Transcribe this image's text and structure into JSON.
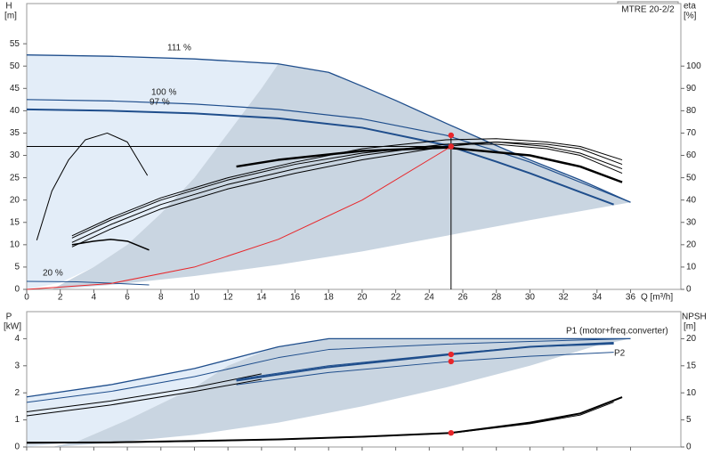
{
  "chart_data": [
    {
      "type": "line",
      "title": "MTRE 20-2/2",
      "y_label": "H",
      "y_unit": "[m]",
      "y2_label": "eta",
      "y2_unit": "[%]",
      "x_label": "Q [m³/h]",
      "xlim": [
        0,
        39
      ],
      "ylim": [
        0,
        64
      ],
      "y2lim": [
        0,
        128
      ],
      "xticks": [
        0,
        2,
        4,
        6,
        8,
        10,
        12,
        14,
        16,
        18,
        20,
        22,
        24,
        26,
        28,
        30,
        32,
        34,
        36
      ],
      "yticks": [
        0,
        5,
        10,
        15,
        20,
        25,
        30,
        35,
        40,
        45,
        50,
        55
      ],
      "y2ticks": [
        0,
        10,
        20,
        30,
        40,
        50,
        60,
        70,
        80,
        90,
        100
      ],
      "regions": [
        {
          "color": "#e3edf8",
          "x": [
            0,
            0,
            5,
            10,
            15,
            14,
            12,
            10,
            8,
            6,
            4,
            2
          ],
          "values": [
            0,
            52.5,
            52.2,
            51.6,
            50.5,
            45,
            35,
            25,
            17,
            10,
            5,
            1.5
          ]
        },
        {
          "color": "#c9d5e1",
          "x": [
            15,
            18,
            20,
            22,
            25,
            28,
            30,
            33,
            36,
            30,
            25,
            20,
            15,
            10,
            5,
            1.5,
            4,
            6,
            8,
            10,
            12,
            14
          ],
          "values": [
            50.5,
            48.6,
            45.5,
            42.3,
            37.2,
            32.2,
            29,
            24.5,
            19.5,
            15.5,
            12,
            8.5,
            5.5,
            3,
            1,
            0,
            5,
            10,
            17,
            25,
            35,
            45
          ]
        }
      ],
      "series": [
        {
          "name": "111 %",
          "color": "#1f4e8c",
          "width": 1.3,
          "mode": "lines",
          "x": [
            0,
            5,
            10,
            15,
            18,
            20,
            22,
            25,
            28,
            30,
            33,
            36
          ],
          "values": [
            52.5,
            52.2,
            51.6,
            50.5,
            48.6,
            45.5,
            42.3,
            37.2,
            32.2,
            29,
            24.5,
            19.5
          ]
        },
        {
          "name": "100 %",
          "color": "#1f4e8c",
          "width": 1.2,
          "mode": "lines",
          "x": [
            0,
            5,
            10,
            15,
            20,
            25,
            28,
            30,
            33,
            36
          ],
          "values": [
            42.5,
            42.2,
            41.5,
            40.3,
            38.2,
            34.5,
            31,
            28.5,
            24,
            19.5
          ]
        },
        {
          "name": "97 %",
          "color": "#1f4e8c",
          "width": 2,
          "mode": "lines",
          "x": [
            0,
            5,
            10,
            15,
            20,
            25,
            28,
            30,
            33,
            35
          ],
          "values": [
            40.3,
            40,
            39.4,
            38.3,
            36.2,
            32.3,
            28.6,
            26,
            21.8,
            19
          ]
        },
        {
          "name": "20 %",
          "color": "#1f4e8c",
          "width": 1,
          "mode": "lines",
          "x": [
            0,
            3,
            5,
            7.3
          ],
          "values": [
            1.8,
            1.7,
            1.4,
            1
          ]
        },
        {
          "color": "#000000",
          "width": 2.5,
          "mode": "lines",
          "axis": "y2",
          "x": [
            12.5,
            15,
            20,
            25,
            30,
            33,
            35.5
          ],
          "values": [
            55,
            58,
            62,
            63.5,
            60,
            55,
            48
          ]
        },
        {
          "color": "#000000",
          "width": 1,
          "mode": "lines",
          "axis": "y2",
          "x": [
            2.7,
            5,
            8,
            12,
            16,
            20,
            25,
            28,
            31,
            33,
            35.5
          ],
          "values": [
            23,
            31,
            40,
            49,
            56,
            61,
            65,
            65,
            63,
            60,
            52
          ]
        },
        {
          "color": "#000000",
          "width": 1,
          "mode": "lines",
          "axis": "y2",
          "x": [
            2.7,
            5,
            8,
            12,
            16,
            20,
            25,
            28,
            31,
            33,
            35.5
          ],
          "values": [
            21,
            29,
            38,
            47,
            54,
            60,
            65,
            66,
            64,
            61,
            54
          ]
        },
        {
          "color": "#000000",
          "width": 1,
          "mode": "lines",
          "axis": "y2",
          "x": [
            2.7,
            5,
            8,
            12,
            16,
            20,
            25,
            28,
            31,
            33,
            35.5
          ],
          "values": [
            19,
            27,
            36,
            45,
            52,
            58,
            64,
            66,
            65,
            63,
            56
          ]
        },
        {
          "color": "#000000",
          "width": 1,
          "mode": "lines",
          "axis": "y2",
          "x": [
            2.7,
            5,
            8,
            12,
            16,
            20,
            25,
            28,
            31,
            33,
            35.5
          ],
          "values": [
            24,
            32,
            41,
            50,
            57,
            63,
            67,
            67.5,
            66,
            64,
            58
          ]
        },
        {
          "color": "#000000",
          "width": 1,
          "mode": "lines",
          "x": [
            0.6,
            1.5,
            2.5,
            3.5,
            4.8,
            6,
            7.2
          ],
          "values": [
            11,
            22,
            29,
            33.5,
            35,
            33,
            25.5
          ]
        },
        {
          "color": "#000000",
          "width": 1.5,
          "mode": "lines",
          "x": [
            2.7,
            4,
            5,
            6,
            7.3
          ],
          "values": [
            10,
            10.8,
            11.2,
            10.8,
            8.8
          ]
        },
        {
          "color": "#e8262a",
          "width": 1,
          "mode": "lines",
          "x": [
            0,
            5,
            10,
            15,
            20,
            25.3
          ],
          "values": [
            0,
            1.3,
            5,
            11.2,
            20,
            32
          ]
        },
        {
          "color": "#000000",
          "width": 1,
          "mode": "lines",
          "x": [
            0,
            25.3
          ],
          "values": [
            32,
            32
          ]
        },
        {
          "color": "#000000",
          "width": 1,
          "mode": "lines",
          "x": [
            25.3,
            25.3
          ],
          "values": [
            0,
            34.5
          ]
        },
        {
          "color": "#e8262a",
          "mode": "markers",
          "x": [
            25.3,
            25.3
          ],
          "values": [
            34.5,
            32
          ]
        }
      ]
    },
    {
      "type": "line",
      "y_label": "P",
      "y_unit": "[kW]",
      "y2_label": "NPSH",
      "y2_unit": "[m]",
      "xlim": [
        0,
        39
      ],
      "ylim": [
        0,
        5
      ],
      "y2lim": [
        0,
        25
      ],
      "yticks": [
        0,
        1,
        2,
        3,
        4
      ],
      "y2ticks": [
        0,
        5,
        10,
        15,
        20
      ],
      "regions": [
        {
          "color": "#e3edf8",
          "x": [
            0,
            0,
            5,
            10,
            15,
            14,
            12,
            10,
            6,
            3
          ],
          "values": [
            0,
            1.85,
            2.3,
            2.9,
            3.7,
            3.5,
            3,
            2.2,
            1,
            0.2
          ]
        },
        {
          "color": "#c9d5e1",
          "x": [
            15,
            18,
            36,
            34,
            30,
            25,
            20,
            15,
            10,
            5,
            1.5,
            3,
            6,
            10,
            12,
            14
          ],
          "values": [
            3.7,
            4,
            4,
            3.75,
            3,
            2.2,
            1.5,
            0.9,
            0.45,
            0.15,
            0,
            0.2,
            1,
            2.2,
            3,
            3.5
          ]
        }
      ],
      "series": [
        {
          "name": "P1 (motor+freq.converter)",
          "color": "#1f4e8c",
          "width": 1.3,
          "mode": "lines",
          "x": [
            0,
            5,
            10,
            15,
            18,
            25,
            30,
            36
          ],
          "values": [
            1.85,
            2.3,
            2.9,
            3.7,
            4,
            4,
            4,
            4
          ]
        },
        {
          "color": "#1f4e8c",
          "width": 1,
          "mode": "lines",
          "x": [
            0,
            5,
            10,
            15,
            18,
            25,
            30,
            36
          ],
          "values": [
            1.65,
            2.05,
            2.6,
            3.3,
            3.6,
            3.8,
            3.9,
            4
          ]
        },
        {
          "color": "#000000",
          "width": 1,
          "mode": "lines",
          "x": [
            0,
            5,
            10,
            14
          ],
          "values": [
            1.3,
            1.7,
            2.2,
            2.7
          ]
        },
        {
          "color": "#000000",
          "width": 1,
          "mode": "lines",
          "x": [
            0,
            5,
            10,
            14
          ],
          "values": [
            1.15,
            1.55,
            2.05,
            2.5
          ]
        },
        {
          "color": "#1f4e8c",
          "width": 2,
          "mode": "lines",
          "x": [
            12.5,
            18,
            25.3,
            30,
            35
          ],
          "values": [
            2.45,
            2.95,
            3.42,
            3.7,
            3.85
          ]
        },
        {
          "name": "P2",
          "color": "#1f4e8c",
          "width": 1,
          "mode": "lines",
          "x": [
            12.5,
            18,
            25.3,
            30,
            35
          ],
          "values": [
            2.3,
            2.75,
            3.16,
            3.35,
            3.5
          ]
        },
        {
          "color": "#1f4e8c",
          "width": 1,
          "mode": "lines",
          "x": [
            12.5,
            18,
            25.3,
            30,
            35
          ],
          "values": [
            2.5,
            3,
            3.45,
            3.7,
            3.8
          ]
        },
        {
          "color": "#000000",
          "width": 2,
          "mode": "lines",
          "axis": "y2",
          "x": [
            0,
            5,
            10,
            15,
            20,
            25.3,
            30,
            33,
            35.5
          ],
          "values": [
            0.8,
            0.85,
            1.1,
            1.4,
            1.9,
            2.6,
            4.5,
            6.2,
            9.2
          ]
        },
        {
          "color": "#000000",
          "width": 1,
          "mode": "lines",
          "axis": "y2",
          "x": [
            0,
            5,
            10,
            15,
            20,
            25.3,
            30,
            33,
            35
          ],
          "values": [
            0.7,
            0.8,
            1.05,
            1.35,
            1.85,
            2.55,
            4.3,
            5.9,
            8.3
          ]
        },
        {
          "color": "#e8262a",
          "mode": "markers",
          "x": [
            25.3,
            25.3
          ],
          "values": [
            3.42,
            3.16
          ]
        },
        {
          "color": "#e8262a",
          "mode": "markers",
          "axis": "y2",
          "x": [
            25.3
          ],
          "values": [
            2.6
          ]
        }
      ]
    }
  ]
}
